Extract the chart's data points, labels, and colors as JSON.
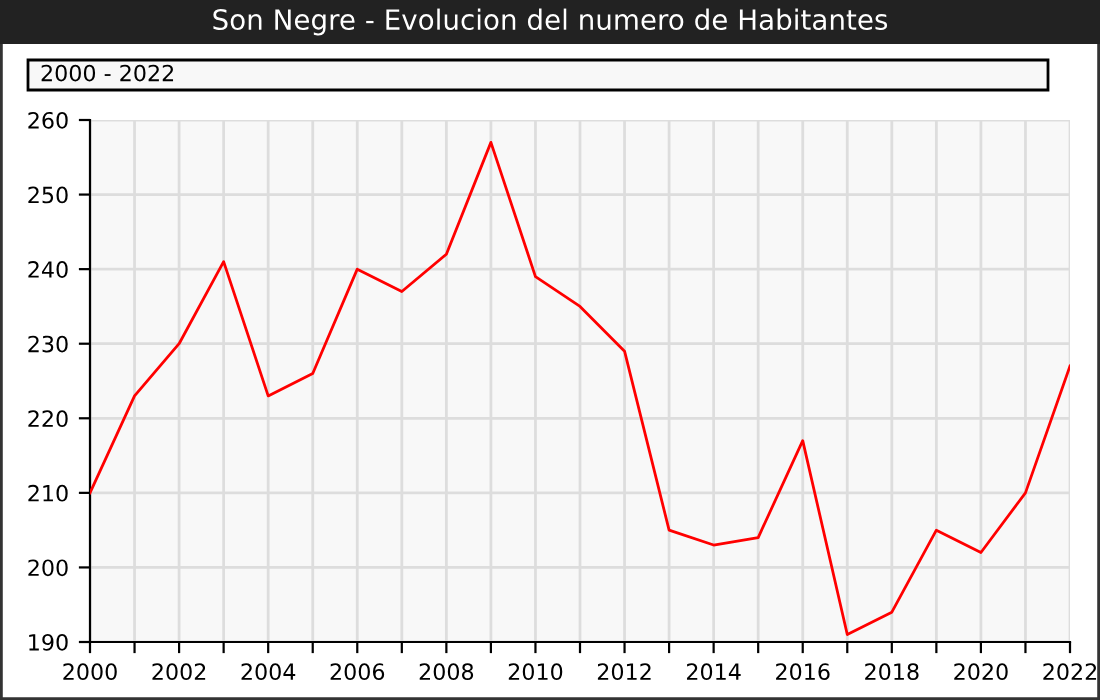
{
  "chart_data": {
    "type": "line",
    "title": "Son Negre - Evolucion del numero de Habitantes",
    "annotations": [
      "2000 - 2022"
    ],
    "x": [
      2000,
      2001,
      2002,
      2003,
      2004,
      2005,
      2006,
      2007,
      2008,
      2009,
      2010,
      2011,
      2012,
      2013,
      2014,
      2015,
      2016,
      2017,
      2018,
      2019,
      2020,
      2021,
      2022
    ],
    "series": [
      {
        "color": "#ff0000",
        "values": [
          210,
          223,
          230,
          241,
          223,
          226,
          240,
          237,
          242,
          257,
          239,
          235,
          229,
          205,
          203,
          204,
          217,
          191,
          194,
          205,
          202,
          210,
          227
        ]
      }
    ],
    "xlim": [
      2000,
      2022
    ],
    "xticks": [
      2000,
      {
        "value": 2001,
        "label": null
      },
      2002,
      {
        "value": 2003,
        "label": null
      },
      2004,
      {
        "value": 2005,
        "label": null
      },
      2006,
      {
        "value": 2007,
        "label": null
      },
      2008,
      {
        "value": 2009,
        "label": null
      },
      2010,
      {
        "value": 2011,
        "label": null
      },
      2012,
      {
        "value": 2013,
        "label": null
      },
      2014,
      {
        "value": 2015,
        "label": null
      },
      2016,
      {
        "value": 2017,
        "label": null
      },
      2018,
      {
        "value": 2019,
        "label": null
      },
      2020,
      {
        "value": 2021,
        "label": null
      },
      2022
    ],
    "ylim": [
      190,
      260
    ],
    "yticks": [
      190,
      200,
      210,
      220,
      230,
      240,
      250,
      260
    ],
    "grid": true,
    "marker": "none",
    "line_style": "solid"
  }
}
